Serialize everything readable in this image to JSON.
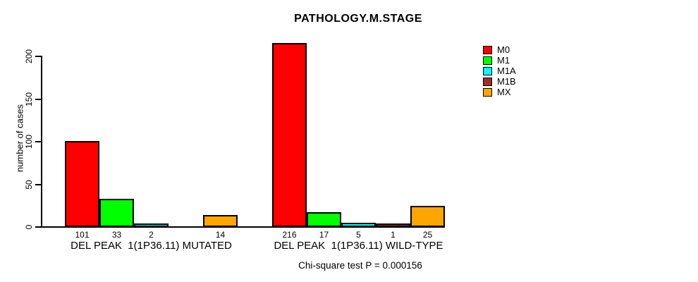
{
  "page": {
    "background": "#ffffff"
  },
  "chart_data": {
    "type": "bar",
    "title": "PATHOLOGY.M.STAGE",
    "ylabel": "number of cases",
    "xlabel": "",
    "yticks": [
      0,
      50,
      100,
      150,
      200
    ],
    "ylim": [
      0,
      216
    ],
    "grid": false,
    "legend_position": "right",
    "categories": [
      "DEL PEAK  1(1P36.11) MUTATED",
      "DEL PEAK  1(1P36.11) WILD-TYPE"
    ],
    "series": [
      {
        "name": "M0",
        "color": "#FF0000",
        "values": [
          101,
          216
        ]
      },
      {
        "name": "M1",
        "color": "#00FF00",
        "values": [
          33,
          17
        ]
      },
      {
        "name": "M1A",
        "color": "#00FFFF",
        "values": [
          2,
          5
        ]
      },
      {
        "name": "M1B",
        "color": "#A52A2A",
        "values": [
          0,
          1
        ]
      },
      {
        "name": "MX",
        "color": "#FFA500",
        "values": [
          14,
          25
        ]
      }
    ],
    "bar_value_labels_shown": true,
    "hide_zero_value_labels": true,
    "annotation": "Chi-square test P = 0.000156"
  }
}
